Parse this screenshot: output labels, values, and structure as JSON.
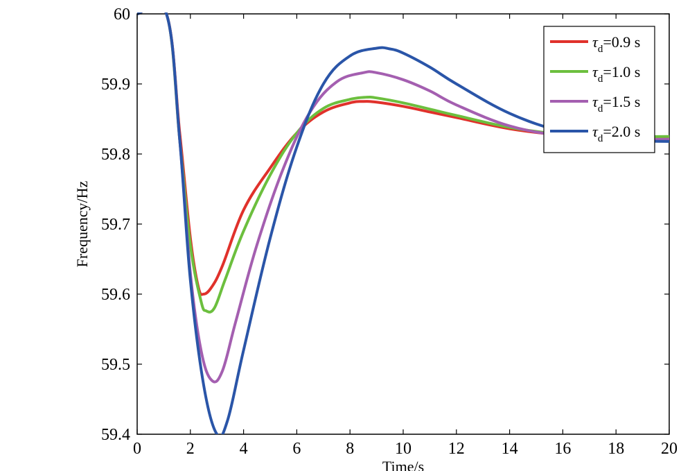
{
  "chart_data": {
    "type": "line",
    "xlabel": "Time/s",
    "ylabel": "Frequency/Hz",
    "xlim": [
      0,
      20
    ],
    "ylim": [
      59.4,
      60
    ],
    "xticks": [
      "0",
      "2",
      "4",
      "6",
      "8",
      "10",
      "12",
      "14",
      "16",
      "18",
      "20"
    ],
    "yticks": [
      "59.4",
      "59.5",
      "59.6",
      "59.7",
      "59.8",
      "59.9",
      "60"
    ],
    "grid": false,
    "legend_position": "top-right",
    "legend_symbol": "τ",
    "legend_subscript": "d",
    "series": [
      {
        "name": "τd=0.9 s",
        "label_value": "=0.9 s",
        "color": "#e0312b",
        "points": [
          [
            0,
            60
          ],
          [
            1.1,
            60
          ],
          [
            1.6,
            59.83
          ],
          [
            2.0,
            59.68
          ],
          [
            2.3,
            59.61
          ],
          [
            2.5,
            59.6
          ],
          [
            2.8,
            59.61
          ],
          [
            3.2,
            59.64
          ],
          [
            4,
            59.72
          ],
          [
            5,
            59.78
          ],
          [
            6,
            59.83
          ],
          [
            7,
            59.86
          ],
          [
            8,
            59.873
          ],
          [
            8.5,
            59.875
          ],
          [
            9,
            59.874
          ],
          [
            10,
            59.868
          ],
          [
            11,
            59.86
          ],
          [
            12,
            59.852
          ],
          [
            14,
            59.836
          ],
          [
            16,
            59.827
          ],
          [
            18,
            59.824
          ],
          [
            20,
            59.824
          ]
        ]
      },
      {
        "name": "τd=1.0 s",
        "label_value": "=1.0 s",
        "color": "#6cbf3e",
        "points": [
          [
            0,
            60
          ],
          [
            1.1,
            60
          ],
          [
            1.6,
            59.82
          ],
          [
            2.0,
            59.67
          ],
          [
            2.4,
            59.59
          ],
          [
            2.6,
            59.576
          ],
          [
            2.9,
            59.58
          ],
          [
            3.3,
            59.62
          ],
          [
            4,
            59.69
          ],
          [
            5,
            59.77
          ],
          [
            6,
            59.83
          ],
          [
            7,
            59.865
          ],
          [
            8,
            59.878
          ],
          [
            8.6,
            59.881
          ],
          [
            9,
            59.88
          ],
          [
            10,
            59.873
          ],
          [
            11,
            59.864
          ],
          [
            12,
            59.855
          ],
          [
            14,
            59.838
          ],
          [
            16,
            59.828
          ],
          [
            18,
            59.825
          ],
          [
            20,
            59.825
          ]
        ]
      },
      {
        "name": "τd=1.5 s",
        "label_value": "=1.5 s",
        "color": "#a45fb0",
        "points": [
          [
            0,
            60
          ],
          [
            1.1,
            60
          ],
          [
            1.6,
            59.82
          ],
          [
            2.0,
            59.63
          ],
          [
            2.4,
            59.52
          ],
          [
            2.8,
            59.477
          ],
          [
            3.2,
            59.49
          ],
          [
            3.7,
            59.56
          ],
          [
            4.5,
            59.67
          ],
          [
            5.5,
            59.78
          ],
          [
            6.5,
            59.86
          ],
          [
            7.5,
            59.903
          ],
          [
            8.5,
            59.916
          ],
          [
            9,
            59.916
          ],
          [
            10,
            59.906
          ],
          [
            11,
            59.89
          ],
          [
            12,
            59.87
          ],
          [
            14,
            59.84
          ],
          [
            16,
            59.826
          ],
          [
            18,
            59.821
          ],
          [
            20,
            59.821
          ]
        ]
      },
      {
        "name": "τd=2.0 s",
        "label_value": "=2.0 s",
        "color": "#2a55a8",
        "points": [
          [
            0,
            60
          ],
          [
            1.1,
            60
          ],
          [
            1.6,
            59.82
          ],
          [
            2.0,
            59.62
          ],
          [
            2.5,
            59.47
          ],
          [
            3.0,
            59.4
          ],
          [
            3.4,
            59.42
          ],
          [
            4,
            59.52
          ],
          [
            5,
            59.68
          ],
          [
            6,
            59.81
          ],
          [
            7,
            59.9
          ],
          [
            8,
            59.94
          ],
          [
            9,
            59.951
          ],
          [
            9.5,
            59.95
          ],
          [
            10,
            59.944
          ],
          [
            11,
            59.924
          ],
          [
            12,
            59.9
          ],
          [
            14,
            59.858
          ],
          [
            16,
            59.832
          ],
          [
            18,
            59.82
          ],
          [
            20,
            59.818
          ]
        ]
      }
    ]
  }
}
